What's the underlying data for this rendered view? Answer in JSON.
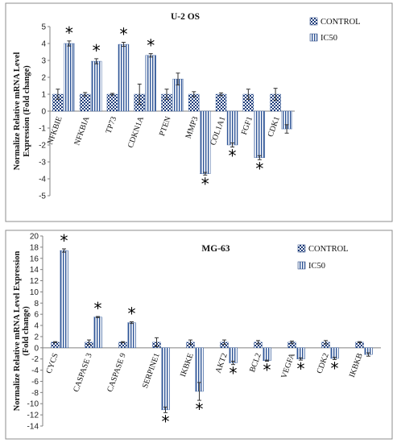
{
  "chart_data": [
    {
      "type": "bar",
      "title": "U-2 OS",
      "ylabel_lines": [
        "Normalize Relative mRNA Level",
        "Expression (Fold change)"
      ],
      "ylim": [
        -5,
        5
      ],
      "yticks": [
        -5,
        -4,
        -3,
        -2,
        -1,
        0,
        1,
        2,
        3,
        4,
        5
      ],
      "grid": false,
      "legend_position": "top-right",
      "categories": [
        "NFKBIE",
        "NFKBIA",
        "TP73",
        "CDKN1A",
        "PTEN",
        "MMP3",
        "COL1A1",
        "FGF1",
        "CDK1"
      ],
      "series": [
        {
          "name": "CONTROL",
          "pattern": "checker",
          "values": [
            1,
            1,
            1,
            1,
            1,
            1,
            1,
            1,
            1
          ],
          "errors": [
            0.3,
            0.1,
            0.05,
            0.6,
            0.3,
            0.15,
            0.08,
            0.3,
            0.35
          ]
        },
        {
          "name": "IC50",
          "pattern": "vertical-stripes",
          "values": [
            4.0,
            2.95,
            3.95,
            3.3,
            1.9,
            -3.7,
            -2.0,
            -2.75,
            -1.05
          ],
          "errors": [
            0.15,
            0.15,
            0.12,
            0.1,
            0.35,
            0.08,
            0.12,
            0.12,
            0.25
          ]
        }
      ],
      "significant": [
        true,
        true,
        true,
        true,
        false,
        true,
        true,
        true,
        false
      ],
      "significance_marker": "*"
    },
    {
      "type": "bar",
      "title": "MG-63",
      "ylabel_lines": [
        "Normalize Relative mRNA Level Expression",
        "(Fold change)"
      ],
      "ylim": [
        -14,
        20
      ],
      "yticks": [
        -14,
        -12,
        -10,
        -8,
        -6,
        -4,
        -2,
        0,
        2,
        4,
        6,
        8,
        10,
        12,
        14,
        16,
        18,
        20
      ],
      "grid": false,
      "legend_position": "top-right",
      "categories": [
        "CYCS",
        "CASPASE 3",
        "CASPASE 9",
        "SERPINE1",
        "IKBKE",
        "AKT2",
        "BCL2",
        "VEGFA",
        "CDK2",
        "IKBKB"
      ],
      "series": [
        {
          "name": "CONTROL",
          "pattern": "checker",
          "values": [
            1,
            1,
            1,
            1,
            1,
            1,
            1,
            1,
            1,
            1
          ],
          "errors": [
            0.1,
            0.4,
            0.1,
            0.8,
            0.4,
            0.4,
            0.3,
            0.2,
            0.3,
            0.1
          ]
        },
        {
          "name": "IC50",
          "pattern": "vertical-stripes",
          "values": [
            17.4,
            5.5,
            4.5,
            -11.1,
            -7.8,
            -2.7,
            -2.3,
            -2.0,
            -1.9,
            -1.2
          ],
          "errors": [
            0.3,
            0.1,
            0.15,
            0.5,
            1.6,
            0.3,
            0.1,
            0.2,
            0.2,
            0.3
          ]
        }
      ],
      "significant": [
        true,
        true,
        true,
        true,
        true,
        true,
        true,
        true,
        true,
        false
      ],
      "significance_marker": "*"
    }
  ]
}
